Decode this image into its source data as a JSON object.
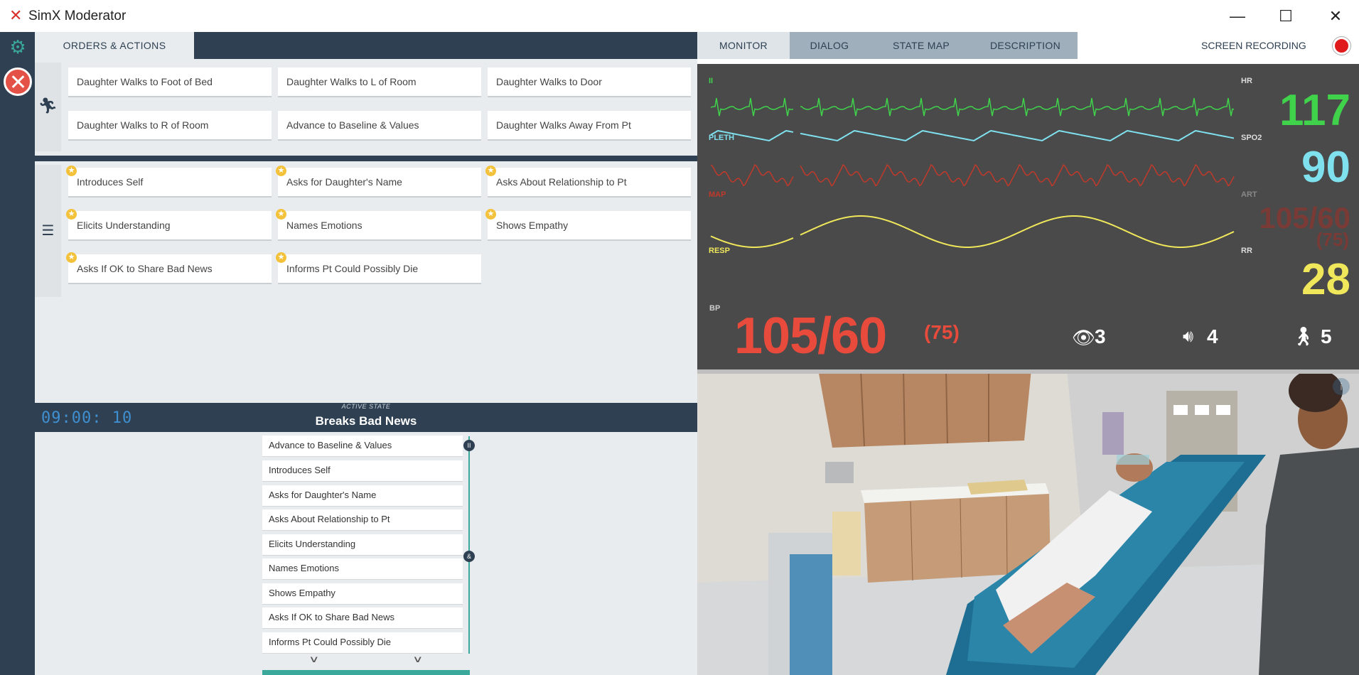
{
  "window": {
    "title": "SimX Moderator",
    "minimize": "—",
    "maximize": "☐",
    "close": "✕"
  },
  "orders": {
    "tab_label": "ORDERS & ACTIONS",
    "movement_actions": [
      "Daughter Walks to Foot of Bed",
      "Daughter Walks to L of Room",
      "Daughter Walks to Door",
      "Daughter Walks to R of Room",
      "Advance to Baseline & Values",
      "Daughter Walks Away From Pt"
    ],
    "checklist_actions": [
      "Introduces Self",
      "Asks for Daughter's Name",
      "Asks About Relationship to Pt",
      "Elicits Understanding",
      "Names Emotions",
      "Shows Empathy",
      "Asks If OK to Share Bad News",
      "Informs Pt Could Possibly Die"
    ]
  },
  "state": {
    "timer": "09:00: 10",
    "active_label": "ACTIVE STATE",
    "name": "Breaks Bad News",
    "items": [
      "Advance to Baseline & Values",
      "Introduces Self",
      "Asks for Daughter's Name",
      "Asks About Relationship to Pt",
      "Elicits Understanding",
      "Names Emotions",
      "Shows Empathy",
      "Asks If OK to Share Bad News",
      "Informs Pt Could Possibly Die"
    ],
    "node_pause": "II",
    "node_and": "&"
  },
  "monitor_tabs": [
    "MONITOR",
    "DIALOG",
    "STATE MAP",
    "DESCRIPTION"
  ],
  "screen_recording": "SCREEN RECORDING",
  "vitals": {
    "ecg_label": "II",
    "pleth_label": "PLETH",
    "map_label": "MAP",
    "resp_label": "RESP",
    "bp_label": "BP",
    "hr_label": "HR",
    "hr": "117",
    "spo2_label": "SPO2",
    "spo2": "90",
    "art_label": "ART",
    "art": "105/60",
    "art_mean": "(75)",
    "rr_label": "RR",
    "rr": "28",
    "bp": "105/60",
    "bp_mean": "(75)",
    "eye_count": "3",
    "sound_count": "4",
    "walk_count": "5"
  },
  "colors": {
    "ecg": "#3fd24a",
    "pleth": "#7fe0ee",
    "map": "#c0392b",
    "resp": "#f0e85a",
    "bp": "#e84a3c",
    "accent": "#3aa89a",
    "nav": "#2e4052"
  }
}
